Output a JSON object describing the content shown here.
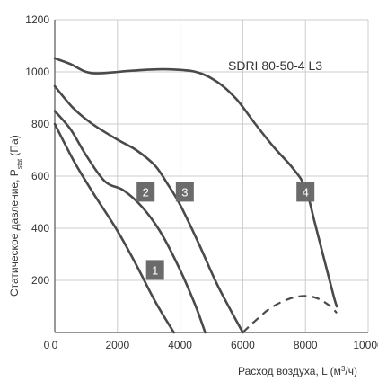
{
  "chart_data": {
    "type": "line",
    "model_label": "SDRI 80-50-4 L3",
    "xlabel_main": "Расход воздуха, L (м",
    "xlabel_sup": "3",
    "xlabel_end": "/ч)",
    "ylabel_main": "Статическое давление, P",
    "ylabel_sub": "stat",
    "ylabel_end": " (Па)",
    "xlim": [
      0,
      10000
    ],
    "ylim": [
      0,
      1200
    ],
    "x_ticks": [
      0,
      2000,
      4000,
      6000,
      8000,
      10000
    ],
    "y_ticks": [
      200,
      400,
      600,
      800,
      1000,
      1200
    ],
    "y_origin_label": "0",
    "grid": true,
    "line_color": "#4a4a4a",
    "grid_color": "#cccccc",
    "badge_color": "#6b6b6b",
    "series": [
      {
        "label": "1",
        "badge_at": [
          3200,
          240
        ],
        "points": [
          [
            0,
            800
          ],
          [
            600,
            660
          ],
          [
            1200,
            540
          ],
          [
            2000,
            390
          ],
          [
            2600,
            260
          ],
          [
            3200,
            120
          ],
          [
            3800,
            0
          ]
        ]
      },
      {
        "label": "2",
        "badge_at": [
          2900,
          540
        ],
        "points": [
          [
            0,
            850
          ],
          [
            500,
            780
          ],
          [
            1000,
            680
          ],
          [
            1600,
            580
          ],
          [
            2200,
            545
          ],
          [
            2800,
            480
          ],
          [
            3400,
            380
          ],
          [
            4000,
            240
          ],
          [
            4500,
            100
          ],
          [
            4800,
            0
          ]
        ]
      },
      {
        "label": "3",
        "badge_at": [
          4150,
          540
        ],
        "points": [
          [
            0,
            945
          ],
          [
            600,
            860
          ],
          [
            1200,
            800
          ],
          [
            2000,
            740
          ],
          [
            2600,
            700
          ],
          [
            3200,
            640
          ],
          [
            3600,
            570
          ],
          [
            4000,
            490
          ],
          [
            4600,
            340
          ],
          [
            5200,
            180
          ],
          [
            6000,
            0
          ]
        ]
      },
      {
        "label": "4",
        "badge_at": [
          8000,
          540
        ],
        "points": [
          [
            0,
            1052
          ],
          [
            500,
            1030
          ],
          [
            1000,
            1000
          ],
          [
            1500,
            995
          ],
          [
            2500,
            1005
          ],
          [
            3500,
            1010
          ],
          [
            4500,
            1000
          ],
          [
            5200,
            960
          ],
          [
            5800,
            895
          ],
          [
            6400,
            800
          ],
          [
            7000,
            710
          ],
          [
            7600,
            630
          ],
          [
            8000,
            555
          ],
          [
            8300,
            420
          ],
          [
            8600,
            280
          ],
          [
            8900,
            140
          ],
          [
            9000,
            100
          ]
        ]
      }
    ],
    "dashed_series": {
      "points": [
        [
          6000,
          0
        ],
        [
          6400,
          45
        ],
        [
          6900,
          95
        ],
        [
          7500,
          130
        ],
        [
          8000,
          140
        ],
        [
          8400,
          130
        ],
        [
          8800,
          100
        ],
        [
          9000,
          75
        ]
      ]
    }
  }
}
